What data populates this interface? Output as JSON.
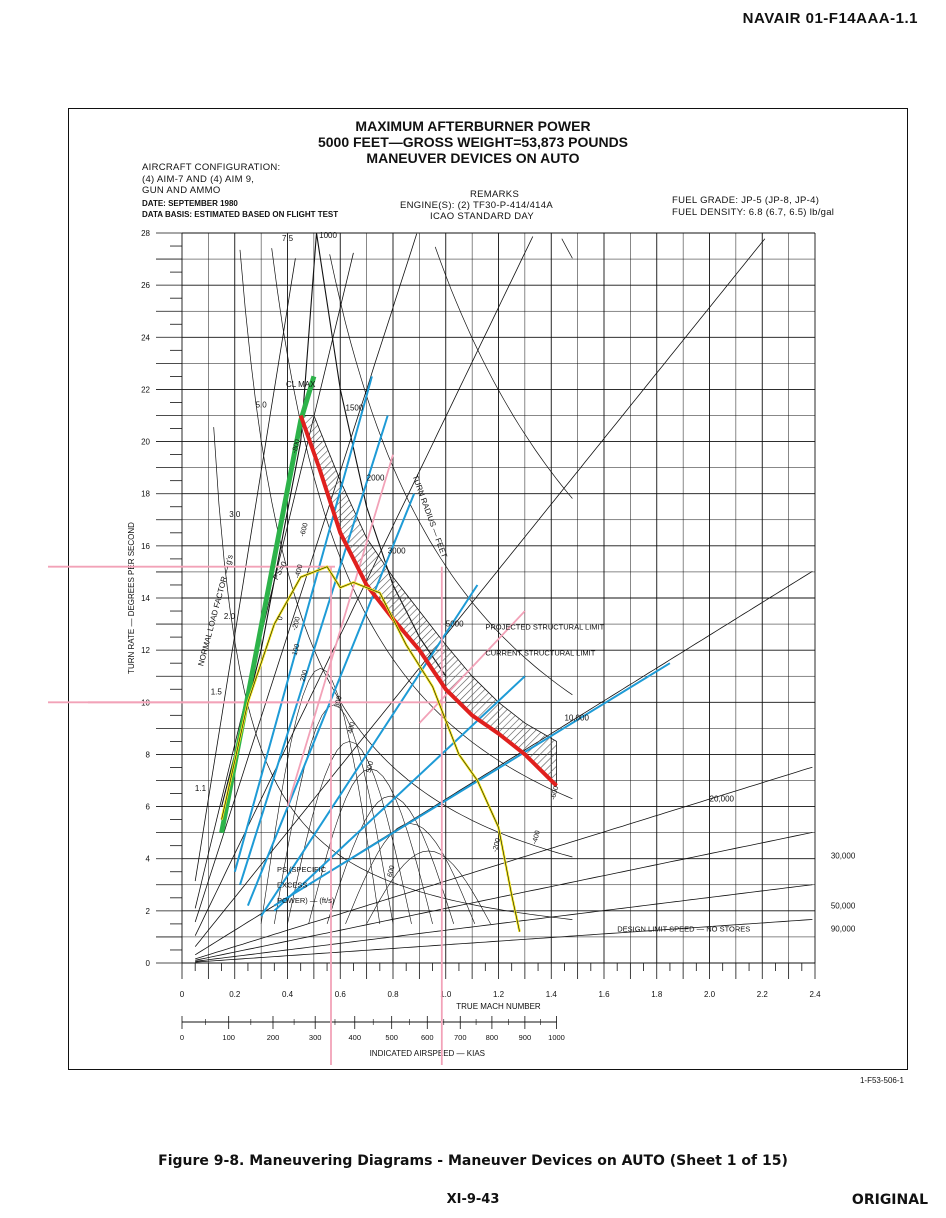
{
  "doc_id": "NAVAIR 01-F14AAA-1.1",
  "title_lines": [
    "MAXIMUM AFTERBURNER POWER",
    "5000 FEET—GROSS WEIGHT=53,873 POUNDS",
    "MANEUVER DEVICES ON AUTO"
  ],
  "config": {
    "label": "AIRCRAFT CONFIGURATION:",
    "line1": "(4) AIM-7 AND (4) AIM 9,",
    "line2": "GUN AND AMMO",
    "date": "DATE: SEPTEMBER 1980",
    "basis": "DATA BASIS: ESTIMATED BASED ON FLIGHT TEST"
  },
  "remarks": {
    "label": "REMARKS",
    "engines": "ENGINE(S): (2) TF30-P-414/414A",
    "day": "ICAO STANDARD DAY"
  },
  "fuel": {
    "grade": "FUEL GRADE: JP-5 (JP-8, JP-4)",
    "density": "FUEL DENSITY: 6.8 (6.7, 6.5) lb/gal"
  },
  "chart_data": {
    "type": "line",
    "xlabel": "TRUE MACH NUMBER",
    "ylabel": "TURN RATE — DEGREES PER SECOND",
    "x2label": "INDICATED AIRSPEED — KIAS",
    "xlim": [
      0,
      2.4
    ],
    "ylim": [
      0,
      28
    ],
    "x_ticks": [
      "0",
      "0.2",
      "0.4",
      "0.6",
      "0.8",
      "1.0",
      "1.2",
      "1.4",
      "1.6",
      "1.8",
      "2.0",
      "2.2",
      "2.4"
    ],
    "y_ticks": [
      "0",
      "2",
      "4",
      "6",
      "8",
      "10",
      "12",
      "14",
      "16",
      "18",
      "20",
      "22",
      "24",
      "26",
      "28"
    ],
    "kias_ticks": [
      "0",
      "100",
      "200",
      "300",
      "400",
      "500",
      "600",
      "700",
      "800",
      "900",
      "1000"
    ],
    "kias_mach": [
      0,
      0.177,
      0.345,
      0.505,
      0.655,
      0.795,
      0.93,
      1.055,
      1.175,
      1.3,
      1.42
    ],
    "grid": true,
    "annotations": {
      "clmax": "CL MAX",
      "load_factor": "NORMAL LOAD FACTOR — g's",
      "turn_radius": "TURN RADIUS — FEET",
      "ps_label": "PS (SPECIFIC EXCESS POWER) — (ft/s)",
      "ps0": "PS=0",
      "projected": "PROJECTED STRUCTURAL LIMIT",
      "current": "CURRENT STRUCTURAL LIMIT",
      "design": "DESIGN LIMIT SPEED — NO STORES",
      "figure_code": "1-F53-506-1"
    },
    "load_factor_labels": [
      "1.1",
      "1.5",
      "2.0",
      "3.0",
      "5.0",
      "7.5"
    ],
    "radius_labels": [
      "1000",
      "1500",
      "2000",
      "3000",
      "5000",
      "10,000",
      "20,000",
      "30,000",
      "50,000",
      "90,000"
    ],
    "ps_labels": [
      "-800",
      "-600",
      "-400",
      "-200",
      "0",
      "100",
      "200",
      "300",
      "400",
      "500",
      "600",
      "-200",
      "-400",
      "-600"
    ],
    "series": [
      {
        "name": "CL MAX",
        "x": [
          0.15,
          0.3,
          0.45,
          0.51,
          0.6,
          0.7,
          0.8,
          0.9,
          1.0
        ],
        "y": [
          6,
          12,
          20,
          28,
          22,
          17.5,
          14.5,
          12.5,
          11.0
        ]
      },
      {
        "name": "CURRENT STRUCTURAL LIMIT",
        "x": [
          0.45,
          0.52,
          0.6,
          0.7,
          0.8,
          0.9,
          1.0,
          1.1,
          1.2,
          1.3,
          1.42
        ],
        "y": [
          21,
          19,
          16.5,
          14.5,
          13.2,
          12.0,
          10.5,
          9.5,
          8.8,
          8.0,
          6.8
        ]
      },
      {
        "name": "PROJECTED STRUCTURAL LIMIT",
        "x": [
          0.5,
          0.6,
          0.7,
          0.8,
          0.9,
          1.0,
          1.1,
          1.2,
          1.3,
          1.42
        ],
        "y": [
          21,
          18.5,
          16.3,
          14.8,
          13.5,
          12.2,
          11.0,
          10.0,
          9.2,
          8.5
        ]
      },
      {
        "name": "PS = 0",
        "x": [
          0.15,
          0.25,
          0.35,
          0.45,
          0.55,
          0.6,
          0.65,
          0.75,
          0.85,
          0.95,
          1.05,
          1.12,
          1.2,
          1.25,
          1.28
        ],
        "y": [
          5.5,
          10.0,
          13.0,
          14.8,
          15.2,
          14.4,
          14.6,
          14.2,
          12.2,
          10.6,
          8.0,
          7.0,
          5.2,
          2.6,
          1.2
        ]
      }
    ],
    "colors": {
      "green": "#2db34a",
      "red": "#e0201e",
      "yellow": "#f5e81a",
      "blue": "#1e9bd6",
      "pink": "#f2a2b8",
      "hatch": "#555555"
    },
    "overlay_markers": {
      "turn_rate_levels": [
        15.2,
        10.0
      ],
      "mach_levels": [
        0.565,
        0.985
      ]
    }
  },
  "caption": "Figure 9-8. Maneuvering Diagrams - Maneuver Devices on AUTO (Sheet 1 of 15)",
  "page": "XI-9-43",
  "status": "ORIGINAL"
}
